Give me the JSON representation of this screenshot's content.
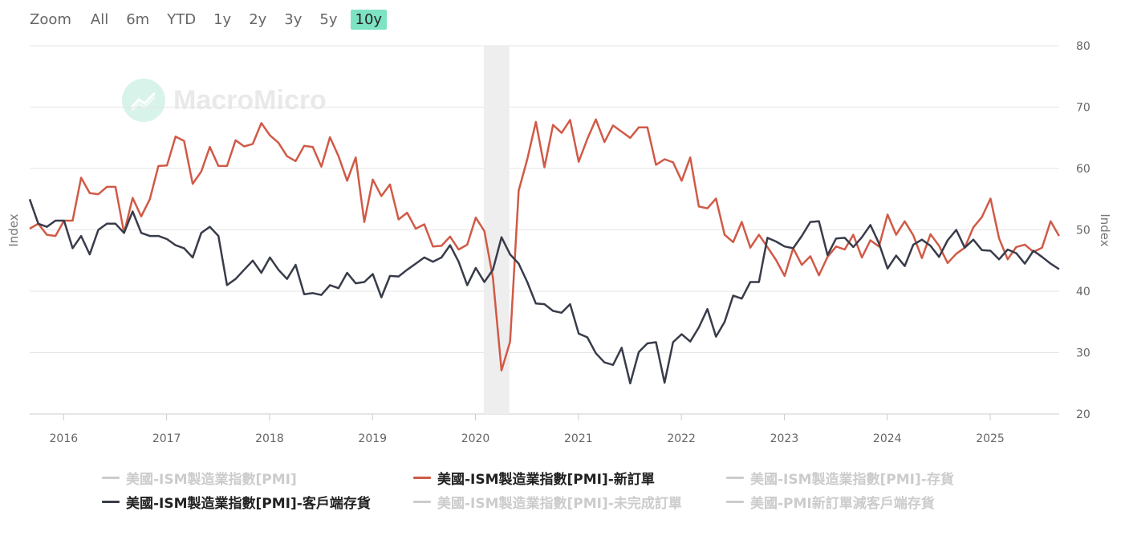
{
  "zoom": {
    "label": "Zoom",
    "buttons": [
      "All",
      "6m",
      "YTD",
      "1y",
      "2y",
      "3y",
      "5y",
      "10y"
    ],
    "active": "10y",
    "active_color": "#7ee3c3"
  },
  "watermark": {
    "text": "MacroMicro",
    "icon": "chart-line-icon"
  },
  "chart_data": {
    "type": "line",
    "y_left_label": "Index",
    "y_right_label": "Index",
    "ylim": [
      20,
      80
    ],
    "y_ticks": [
      20,
      30,
      40,
      50,
      60,
      70,
      80
    ],
    "x_range": [
      2015.67,
      2025.67
    ],
    "x_ticks": [
      "2016",
      "2017",
      "2018",
      "2019",
      "2020",
      "2021",
      "2022",
      "2023",
      "2024",
      "2025"
    ],
    "grid": true,
    "shaded_region": {
      "start": 2020.08,
      "end": 2020.33,
      "color": "#eeeeee"
    },
    "series": [
      {
        "name": "美國-ISM製造業指數[PMI]-新訂單",
        "color": "#d05a47",
        "x_start": 2015.67,
        "step": 0.08333,
        "values": [
          50.2,
          51.0,
          49.2,
          49.0,
          51.5,
          51.5,
          58.5,
          56.0,
          55.8,
          57.0,
          57.0,
          49.5,
          55.2,
          52.2,
          55.0,
          60.4,
          60.5,
          65.2,
          64.5,
          57.5,
          59.5,
          63.5,
          60.4,
          60.4,
          64.6,
          63.6,
          64.0,
          67.4,
          65.4,
          64.2,
          62.0,
          61.2,
          63.7,
          63.5,
          60.3,
          65.1,
          62.0,
          58.0,
          61.8,
          51.3,
          58.2,
          55.5,
          57.4,
          51.7,
          52.8,
          50.2,
          50.9,
          47.3,
          47.4,
          48.9,
          46.8,
          47.6,
          52.0,
          49.8,
          42.2,
          27.1,
          31.8,
          56.4,
          61.5,
          67.6,
          60.2,
          67.1,
          65.8,
          67.9,
          61.1,
          64.8,
          68.0,
          64.3,
          67.0,
          66.0,
          65.0,
          66.7,
          66.7,
          60.6,
          61.5,
          61.0,
          58.0,
          61.8,
          53.8,
          53.5,
          55.1,
          49.2,
          48.0,
          51.3,
          47.1,
          49.2,
          47.2,
          45.1,
          42.5,
          47.0,
          44.3,
          45.7,
          42.6,
          45.6,
          47.3,
          46.8,
          49.2,
          45.5,
          48.3,
          47.3,
          52.5,
          49.2,
          51.4,
          49.1,
          45.4,
          49.3,
          47.4,
          44.6,
          46.1,
          47.1,
          50.4,
          52.1,
          55.1,
          48.6,
          45.2,
          47.2,
          47.6,
          46.4,
          47.1,
          51.4,
          49.0
        ]
      },
      {
        "name": "美國-ISM製造業指數[PMI]-客戶端存貨",
        "color": "#383c4a",
        "x_start": 2015.67,
        "step": 0.08333,
        "values": [
          55.0,
          51.0,
          50.5,
          51.5,
          51.5,
          47.0,
          49.0,
          46.0,
          50.0,
          51.0,
          51.0,
          49.5,
          53.0,
          49.5,
          49.0,
          49.0,
          48.5,
          47.5,
          47.0,
          45.5,
          49.5,
          50.5,
          49.0,
          41.0,
          42.0,
          43.5,
          45.0,
          43.0,
          45.5,
          43.5,
          42.0,
          44.3,
          39.5,
          39.7,
          39.4,
          41.0,
          40.5,
          43.0,
          41.3,
          41.5,
          42.8,
          39.0,
          42.5,
          42.4,
          43.5,
          44.5,
          45.5,
          44.8,
          45.5,
          47.5,
          44.8,
          41.0,
          43.8,
          41.5,
          43.5,
          48.8,
          46.0,
          44.5,
          41.5,
          38.0,
          37.9,
          36.8,
          36.5,
          37.9,
          33.1,
          32.5,
          29.9,
          28.4,
          28.0,
          30.8,
          25.0,
          30.1,
          31.5,
          31.7,
          25.1,
          31.7,
          33.0,
          31.8,
          34.1,
          37.1,
          32.6,
          35.0,
          39.3,
          38.8,
          41.5,
          41.5,
          48.7,
          48.1,
          47.3,
          47.0,
          49.0,
          51.3,
          51.4,
          45.9,
          48.6,
          48.7,
          47.2,
          48.8,
          50.8,
          47.8,
          43.7,
          45.8,
          44.1,
          47.6,
          48.4,
          47.4,
          45.6,
          48.3,
          50.0,
          47.1,
          48.4,
          46.7,
          46.6,
          45.2,
          46.8,
          46.2,
          44.5,
          46.6,
          45.6,
          44.5,
          43.6
        ]
      }
    ]
  },
  "legend": [
    {
      "label": "美國-ISM製造業指數[PMI]",
      "visible": false,
      "color": "#cccccc"
    },
    {
      "label": "美國-ISM製造業指數[PMI]-新訂單",
      "visible": true,
      "color": "#d05a47"
    },
    {
      "label": "美國-ISM製造業指數[PMI]-存貨",
      "visible": false,
      "color": "#cccccc"
    },
    {
      "label": "美國-ISM製造業指數[PMI]-客戶端存貨",
      "visible": true,
      "color": "#383c4a"
    },
    {
      "label": "美國-ISM製造業指數[PMI]-未完成訂單",
      "visible": false,
      "color": "#cccccc"
    },
    {
      "label": "美國-PMI新訂單減客戶端存貨",
      "visible": false,
      "color": "#cccccc"
    }
  ]
}
